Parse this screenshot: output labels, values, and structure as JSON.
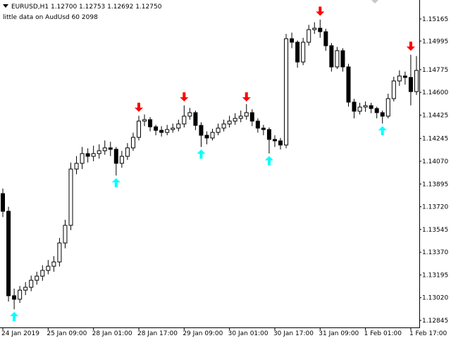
{
  "chart_data": {
    "type": "candlestick",
    "title": "EURUSD,H1  1.12700 1.12753 1.12692 1.12750",
    "subtitle": "little data on AudUsd 60 2098",
    "categories": [
      "24 Jan 2019",
      null,
      null,
      null,
      null,
      null,
      null,
      null,
      "25 Jan 09:00",
      null,
      null,
      null,
      null,
      null,
      null,
      null,
      "28 Jan 01:00",
      null,
      null,
      null,
      null,
      null,
      null,
      null,
      "28 Jan 17:00",
      null,
      null,
      null,
      null,
      null,
      null,
      null,
      "29 Jan 09:00",
      null,
      null,
      null,
      null,
      null,
      null,
      null,
      "30 Jan 01:00",
      null,
      null,
      null,
      null,
      null,
      null,
      null,
      "30 Jan 17:00",
      null,
      null,
      null,
      null,
      null,
      null,
      null,
      "31 Jan 09:00",
      null,
      null,
      null,
      null,
      null,
      null,
      null,
      "1 Feb 01:00",
      null,
      null,
      null,
      null,
      null,
      null,
      null,
      "1 Feb 17:00",
      null
    ],
    "open": [
      1.13821,
      1.13685,
      1.13035,
      1.13008,
      1.13078,
      1.131,
      1.13154,
      1.13186,
      1.1323,
      1.13262,
      1.13295,
      1.13441,
      1.13577,
      1.1401,
      1.14054,
      1.14129,
      1.14108,
      1.14129,
      1.14151,
      1.14173,
      1.14162,
      1.14054,
      1.14108,
      1.14173,
      1.14254,
      1.14379,
      1.1439,
      1.14335,
      1.14308,
      1.14292,
      1.14314,
      1.14325,
      1.14357,
      1.14417,
      1.14444,
      1.14346,
      1.1427,
      1.14249,
      1.14292,
      1.14325,
      1.14357,
      1.14379,
      1.144,
      1.14417,
      1.14444,
      1.14379,
      1.14325,
      1.14314,
      1.14238,
      1.14227,
      1.14195,
      1.15013,
      1.14986,
      1.14834,
      1.14986,
      1.15083,
      1.15094,
      1.15067,
      1.14959,
      1.14796,
      1.14921,
      1.14796,
      1.14525,
      1.14455,
      1.14487,
      1.14498,
      1.14476,
      1.14444,
      1.14417,
      1.14552,
      1.14688,
      1.14726,
      1.14715,
      1.14606
    ],
    "high": [
      1.1386,
      1.1372,
      1.1309,
      1.1311,
      1.1314,
      1.1319,
      1.1322,
      1.1327,
      1.1331,
      1.1334,
      1.1348,
      1.1362,
      1.1406,
      1.1411,
      1.1418,
      1.1417,
      1.1419,
      1.142,
      1.1423,
      1.1422,
      1.1418,
      1.1415,
      1.1421,
      1.1429,
      1.1442,
      1.1443,
      1.1441,
      1.1435,
      1.1434,
      1.1435,
      1.1436,
      1.1439,
      1.145,
      1.1448,
      1.1446,
      1.1437,
      1.143,
      1.1432,
      1.1436,
      1.1439,
      1.1442,
      1.1444,
      1.1446,
      1.1451,
      1.1447,
      1.144,
      1.1435,
      1.1433,
      1.1427,
      1.1425,
      1.1505,
      1.1506,
      1.15,
      1.1502,
      1.1512,
      1.1514,
      1.1516,
      1.1509,
      1.1498,
      1.1495,
      1.1494,
      1.1482,
      1.1455,
      1.1452,
      1.1453,
      1.1452,
      1.1449,
      1.1446,
      1.1459,
      1.1472,
      1.1477,
      1.1476,
      1.1489,
      1.1488
    ],
    "low": [
      1.1364,
      1.1299,
      1.1293,
      1.1298,
      1.1304,
      1.1307,
      1.1312,
      1.1315,
      1.132,
      1.1322,
      1.1326,
      1.134,
      1.1354,
      1.1397,
      1.1401,
      1.1406,
      1.1407,
      1.1409,
      1.1412,
      1.1411,
      1.1396,
      1.1402,
      1.1408,
      1.1415,
      1.1423,
      1.1434,
      1.143,
      1.1427,
      1.1426,
      1.1427,
      1.1429,
      1.143,
      1.1433,
      1.1439,
      1.1431,
      1.1418,
      1.142,
      1.1423,
      1.1427,
      1.143,
      1.1433,
      1.1435,
      1.1437,
      1.1439,
      1.1434,
      1.1429,
      1.1427,
      1.1413,
      1.1418,
      1.1416,
      1.1417,
      1.1494,
      1.1479,
      1.1481,
      1.1496,
      1.1505,
      1.1502,
      1.1492,
      1.1476,
      1.1478,
      1.1476,
      1.1449,
      1.144,
      1.1443,
      1.1445,
      1.1444,
      1.144,
      1.1436,
      1.144,
      1.1453,
      1.1465,
      1.1466,
      1.145,
      1.1458
    ],
    "close": [
      1.13685,
      1.13035,
      1.13008,
      1.13078,
      1.131,
      1.13154,
      1.13186,
      1.1323,
      1.13262,
      1.13295,
      1.13441,
      1.13577,
      1.1401,
      1.14054,
      1.14129,
      1.14108,
      1.14129,
      1.14151,
      1.14173,
      1.14162,
      1.14054,
      1.14108,
      1.14173,
      1.14254,
      1.14379,
      1.1439,
      1.14335,
      1.14308,
      1.14292,
      1.14314,
      1.14325,
      1.14357,
      1.14417,
      1.14444,
      1.14346,
      1.1427,
      1.14249,
      1.14292,
      1.14325,
      1.14357,
      1.14379,
      1.144,
      1.14417,
      1.14444,
      1.14379,
      1.14325,
      1.14314,
      1.14238,
      1.14227,
      1.14195,
      1.15013,
      1.14986,
      1.14834,
      1.14986,
      1.15083,
      1.15094,
      1.15067,
      1.14959,
      1.14796,
      1.14921,
      1.14796,
      1.14525,
      1.14455,
      1.14487,
      1.14498,
      1.14476,
      1.14444,
      1.14417,
      1.14552,
      1.14688,
      1.14726,
      1.14715,
      1.14606,
      1.14769
    ],
    "up_arrows": {
      "color": "#00ffff",
      "values": [
        null,
        null,
        1.1291,
        null,
        null,
        null,
        null,
        null,
        null,
        null,
        null,
        null,
        null,
        null,
        null,
        null,
        null,
        null,
        null,
        null,
        1.1394,
        null,
        null,
        null,
        null,
        null,
        null,
        null,
        null,
        null,
        null,
        null,
        null,
        null,
        null,
        1.1416,
        null,
        null,
        null,
        null,
        null,
        null,
        null,
        null,
        null,
        null,
        null,
        1.1411,
        null,
        null,
        null,
        null,
        null,
        null,
        null,
        null,
        null,
        null,
        null,
        null,
        null,
        null,
        null,
        null,
        null,
        null,
        null,
        1.1434,
        null,
        null,
        null,
        null,
        null,
        null
      ]
    },
    "down_arrows": {
      "color": "#ff0000",
      "values": [
        null,
        null,
        null,
        null,
        null,
        null,
        null,
        null,
        null,
        null,
        null,
        null,
        null,
        null,
        null,
        null,
        null,
        null,
        null,
        null,
        null,
        null,
        null,
        null,
        1.1445,
        null,
        null,
        null,
        null,
        null,
        null,
        null,
        1.1453,
        null,
        null,
        null,
        null,
        null,
        null,
        null,
        null,
        null,
        null,
        1.1453,
        null,
        null,
        null,
        null,
        null,
        null,
        null,
        null,
        null,
        null,
        null,
        null,
        1.1519,
        null,
        null,
        null,
        null,
        null,
        null,
        null,
        null,
        null,
        null,
        null,
        null,
        null,
        null,
        null,
        1.1492,
        null
      ]
    },
    "color": "#000000",
    "ylim": [
      1.12791,
      1.15311
    ],
    "yticks": [
      1.15165,
      1.14995,
      1.14775,
      {
        "value": 1.146,
        "label": "1.14600"
      },
      1.14425,
      1.14245,
      {
        "value": 1.1407,
        "label": "1.14070"
      },
      1.13895,
      {
        "value": 1.1372,
        "label": "1.13720"
      },
      1.13545,
      {
        "value": 1.1337,
        "label": "1.13370"
      },
      1.13195,
      {
        "value": 1.1302,
        "label": "1.13020"
      },
      1.12845
    ],
    "grid": false
  }
}
